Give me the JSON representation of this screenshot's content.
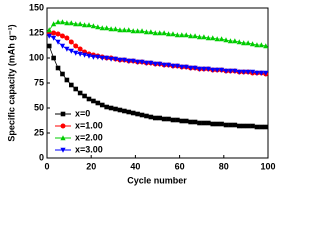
{
  "chart_data": {
    "type": "line",
    "x_label": "Cycle number",
    "y_label": "Specific capacity (mAh g⁻¹)",
    "x": [
      1,
      3,
      5,
      7,
      9,
      11,
      13,
      15,
      17,
      19,
      21,
      23,
      25,
      27,
      29,
      31,
      33,
      35,
      37,
      39,
      41,
      43,
      45,
      47,
      49,
      51,
      53,
      55,
      57,
      59,
      61,
      63,
      65,
      67,
      69,
      71,
      73,
      75,
      77,
      79,
      81,
      83,
      85,
      87,
      89,
      91,
      93,
      95,
      97,
      99
    ],
    "series": [
      {
        "name": "x=0",
        "color": "#000000",
        "marker": "square",
        "values": [
          112,
          100,
          90,
          84,
          78,
          73,
          69,
          65,
          62,
          59,
          57,
          55,
          53,
          51,
          50,
          49,
          48,
          47,
          46,
          45,
          44,
          43,
          42,
          41,
          40,
          40,
          39,
          39,
          38,
          38,
          37,
          37,
          36,
          36,
          35,
          35,
          35,
          34,
          34,
          34,
          33,
          33,
          33,
          32,
          32,
          32,
          32,
          31,
          31,
          31
        ]
      },
      {
        "name": "x=1.00",
        "color": "#ff0000",
        "marker": "circle",
        "values": [
          124,
          125,
          124,
          122,
          120,
          116,
          112,
          109,
          106,
          104,
          103,
          102,
          101,
          100,
          100,
          99,
          98,
          98,
          97,
          97,
          96,
          96,
          95,
          95,
          94,
          94,
          93,
          93,
          92,
          92,
          91,
          91,
          90,
          90,
          89,
          89,
          89,
          88,
          88,
          88,
          87,
          87,
          87,
          86,
          86,
          86,
          85,
          85,
          85,
          84
        ]
      },
      {
        "name": "x=2.00",
        "color": "#00cc00",
        "marker": "triangle-up",
        "values": [
          128,
          134,
          136,
          136,
          135,
          135,
          134,
          134,
          133,
          133,
          132,
          131,
          130,
          130,
          129,
          129,
          128,
          128,
          128,
          127,
          127,
          127,
          126,
          126,
          125,
          125,
          125,
          124,
          124,
          123,
          123,
          123,
          122,
          122,
          121,
          121,
          120,
          120,
          119,
          119,
          118,
          117,
          117,
          116,
          115,
          115,
          114,
          113,
          113,
          112
        ]
      },
      {
        "name": "x=3.00",
        "color": "#0000ff",
        "marker": "triangle-down",
        "values": [
          122,
          120,
          116,
          112,
          109,
          107,
          105,
          104,
          103,
          102,
          101,
          101,
          100,
          100,
          99,
          99,
          98,
          98,
          97,
          97,
          96,
          96,
          95,
          95,
          94,
          94,
          93,
          93,
          92,
          92,
          91,
          91,
          90,
          90,
          89,
          89,
          89,
          88,
          88,
          88,
          87,
          87,
          87,
          86,
          86,
          86,
          86,
          85,
          85,
          85
        ]
      }
    ],
    "xlim": [
      0,
      100
    ],
    "xticks": [
      0,
      20,
      40,
      60,
      80,
      100
    ],
    "ylim": [
      0,
      150
    ],
    "yticks": [
      0,
      25,
      50,
      75,
      100,
      125,
      150
    ],
    "legend": "lower-left"
  }
}
